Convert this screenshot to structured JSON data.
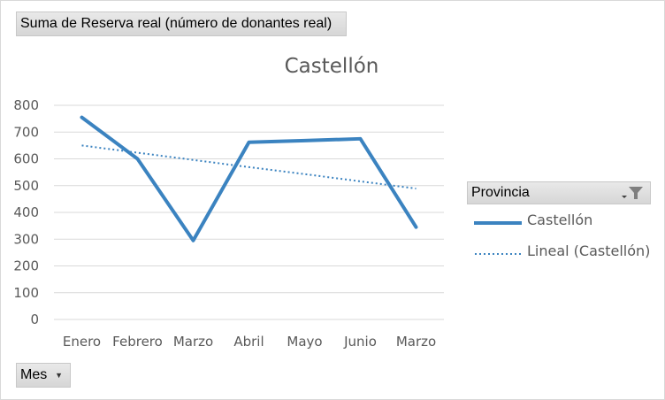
{
  "pivot": {
    "value_field": "Suma de Reserva real (número de donantes real)",
    "axis_field": "Mes",
    "legend_field": "Provincia"
  },
  "colors": {
    "series": "#3b83c0",
    "gridline": "#d9d9d9",
    "text": "#595959"
  },
  "icons": {
    "filter": "filter-icon",
    "dropdown": "dropdown-arrow-icon"
  },
  "chart_data": {
    "type": "line",
    "title": "Castellón",
    "xlabel": "",
    "ylabel": "",
    "categories": [
      "Enero",
      "Febrero",
      "Marzo",
      "Abril",
      "Mayo",
      "Junio",
      "Marzo"
    ],
    "series": [
      {
        "name": "Castellón",
        "values": [
          755,
          600,
          295,
          662,
          668,
          675,
          345
        ],
        "style": "solid"
      },
      {
        "name": "Lineal (Castellón)",
        "values": [
          650,
          623,
          596,
          569,
          543,
          516,
          489
        ],
        "style": "dotted",
        "trendline": true
      }
    ],
    "ylim": [
      0,
      800
    ],
    "yticks": [
      0,
      100,
      200,
      300,
      400,
      500,
      600,
      700,
      800
    ],
    "grid": true,
    "legend_position": "right"
  }
}
